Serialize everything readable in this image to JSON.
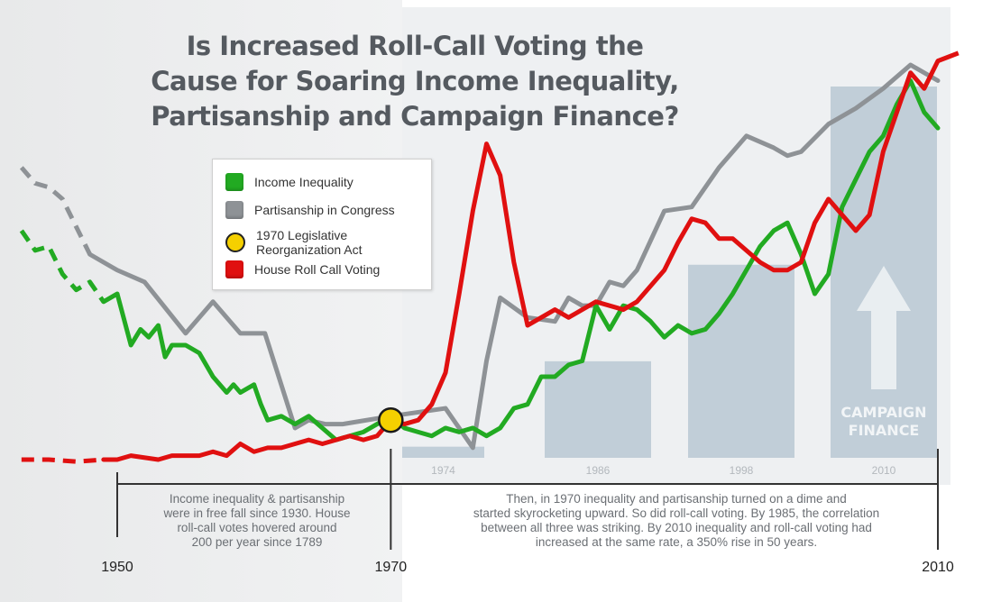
{
  "title_lines": [
    "Is Increased Roll-Call Voting the",
    "Cause for Soaring Income Inequality,",
    "Partisanship and Campaign Finance?"
  ],
  "legend": [
    {
      "label": "Income Inequality",
      "color": "#22aa22",
      "shape": "square"
    },
    {
      "label": "Partisanship in Congress",
      "color": "#8e9296",
      "shape": "square"
    },
    {
      "label": "1970 Legislative Reorganization Act",
      "color": "#f5d000",
      "shape": "circle"
    },
    {
      "label": "House Roll Call Voting",
      "color": "#e01010",
      "shape": "square"
    }
  ],
  "notes": {
    "left": [
      "Income inequality & partisanship",
      "were in free fall since 1930. House",
      "roll-call votes hovered around",
      "200 per year since 1789"
    ],
    "right": [
      "Then, in 1970 inequality and partisanship turned on a dime and",
      "started skyrocketing upward. So did roll-call voting. By 1985, the correlation",
      "between all three was striking. By 2010 inequality and roll-call voting had",
      "increased at the same rate, a 350% rise in 50 years."
    ]
  },
  "campaign_finance_label": [
    "CAMPAIGN",
    "FINANCE"
  ],
  "chart_data": {
    "type": "line",
    "xlim": [
      1950,
      2010
    ],
    "x_ticks": [
      1950,
      1970,
      2010
    ],
    "ylim": [
      0,
      100
    ],
    "marker": {
      "year": 1970,
      "value": 10,
      "label": "1970 Legislative Reorganization Act"
    },
    "campaign_finance_bars": [
      {
        "label": "1974",
        "value": 3
      },
      {
        "label": "1986",
        "value": 26
      },
      {
        "label": "1998",
        "value": 52
      },
      {
        "label": "2010",
        "value": 100
      }
    ],
    "series": [
      {
        "name": "Income Inequality",
        "color": "#22aa22",
        "dashed_x": [
          1943,
          1944,
          1945,
          1946,
          1947,
          1948,
          1949
        ],
        "dashed_y": [
          58,
          53,
          54,
          47,
          43,
          45,
          40
        ],
        "x": [
          1949,
          1950,
          1951,
          1951.7,
          1952.3,
          1953,
          1953.5,
          1954,
          1955,
          1956,
          1957,
          1958,
          1958.5,
          1959,
          1960,
          1960.5,
          1961,
          1962,
          1963,
          1964,
          1965,
          1966,
          1967,
          1968,
          1969,
          1970,
          1971,
          1972,
          1973,
          1974,
          1975,
          1976,
          1977,
          1978,
          1979,
          1980,
          1981,
          1982,
          1983,
          1984,
          1985,
          1986,
          1987,
          1988,
          1989,
          1990,
          1991,
          1992,
          1993,
          1994,
          1995,
          1996,
          1997,
          1998,
          1999,
          2000,
          2001,
          2002,
          2003,
          2004,
          2005,
          2006,
          2007,
          2008,
          2009,
          2010
        ],
        "y": [
          40,
          42,
          29,
          33,
          31,
          34,
          26,
          29,
          29,
          27,
          21,
          17,
          19,
          17,
          19,
          14,
          10,
          11,
          9,
          11,
          8,
          5,
          6,
          7,
          9,
          11,
          8,
          7,
          6,
          8,
          7,
          8,
          6,
          8,
          13,
          14,
          21,
          21,
          24,
          25,
          39,
          33,
          39,
          38,
          35,
          31,
          34,
          32,
          33,
          37,
          42,
          48,
          54,
          58,
          60,
          52,
          42,
          47,
          64,
          71,
          78,
          82,
          90,
          96,
          88,
          84
        ]
      },
      {
        "name": "Partisanship in Congress",
        "color": "#8e9296",
        "dashed_x": [
          1943,
          1944,
          1945,
          1946,
          1947,
          1948
        ],
        "dashed_y": [
          74,
          70,
          69,
          66,
          59,
          52
        ],
        "x": [
          1948,
          1950,
          1952,
          1955,
          1957,
          1959,
          1960.8,
          1963,
          1964,
          1965.2,
          1966.5,
          1970,
          1974,
          1976,
          1977,
          1978,
          1980,
          1982,
          1983,
          1984,
          1985,
          1986,
          1987,
          1988,
          1990,
          1992,
          1994,
          1996,
          1998,
          1999,
          2000,
          2002,
          2004,
          2006,
          2008,
          2010
        ],
        "y": [
          52,
          48,
          45,
          32,
          40,
          32,
          32,
          8,
          10,
          9,
          9,
          11,
          13,
          3,
          25,
          41,
          36,
          35,
          41,
          39,
          39,
          45,
          44,
          48,
          63,
          64,
          74,
          82,
          79,
          77,
          78,
          85,
          89,
          94,
          100,
          96
        ]
      },
      {
        "name": "House Roll Call Voting",
        "color": "#e01010",
        "dashed_x": [
          1943,
          1945,
          1947,
          1949
        ],
        "dashed_y": [
          0,
          0,
          -0.5,
          0
        ],
        "x": [
          1949,
          1950,
          1951,
          1953,
          1954,
          1955,
          1956,
          1957,
          1958,
          1959,
          1960,
          1961,
          1962,
          1963,
          1964,
          1965,
          1966,
          1967,
          1968,
          1969,
          1970,
          1971,
          1972,
          1973,
          1974,
          1975,
          1976,
          1977,
          1978,
          1979,
          1980,
          1981,
          1982,
          1983,
          1984,
          1985,
          1986,
          1987,
          1988,
          1989,
          1990,
          1991,
          1992,
          1993,
          1994,
          1995,
          1996,
          1997,
          1998,
          1999,
          2000,
          2001,
          2002,
          2003,
          2004,
          2005,
          2006,
          2007,
          2008,
          2009,
          2010
        ],
        "y": [
          0,
          0,
          1,
          0,
          1,
          1,
          1,
          2,
          1,
          4,
          2,
          3,
          3,
          4,
          5,
          4,
          5,
          6,
          5,
          6,
          10,
          9,
          10,
          14,
          22,
          42,
          63,
          80,
          72,
          50,
          34,
          36,
          38,
          36,
          38,
          40,
          39,
          38,
          40,
          44,
          48,
          55,
          61,
          60,
          56,
          56,
          53,
          50,
          48,
          48,
          50,
          60,
          66,
          62,
          58,
          62,
          78,
          88,
          98,
          94,
          101
        ]
      }
    ]
  }
}
